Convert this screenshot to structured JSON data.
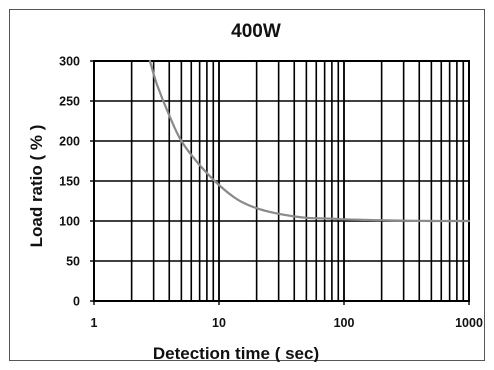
{
  "chart_data": {
    "type": "line",
    "title": "400W",
    "xlabel": "Detection time ( sec)",
    "ylabel": "Load ratio ( % )",
    "x_scale": "log",
    "xlim": [
      1,
      1000
    ],
    "ylim": [
      0,
      300
    ],
    "x_ticks": [
      1,
      10,
      100,
      1000
    ],
    "x_tick_labels": [
      "1",
      "10",
      "100",
      "1000"
    ],
    "y_ticks": [
      0,
      50,
      100,
      150,
      200,
      250,
      300
    ],
    "y_tick_labels": [
      "0",
      "50",
      "100",
      "150",
      "200",
      "250",
      "300"
    ],
    "grid": true,
    "series": [
      {
        "color": "#8a8a8a",
        "x": [
          2.8,
          3.2,
          4,
          5,
          7,
          10,
          14,
          20,
          30,
          50,
          80,
          100,
          200,
          500,
          1000
        ],
        "y": [
          300,
          270,
          232,
          200,
          170,
          145,
          127,
          116,
          109,
          104,
          103,
          102,
          101,
          100,
          100
        ]
      }
    ]
  }
}
